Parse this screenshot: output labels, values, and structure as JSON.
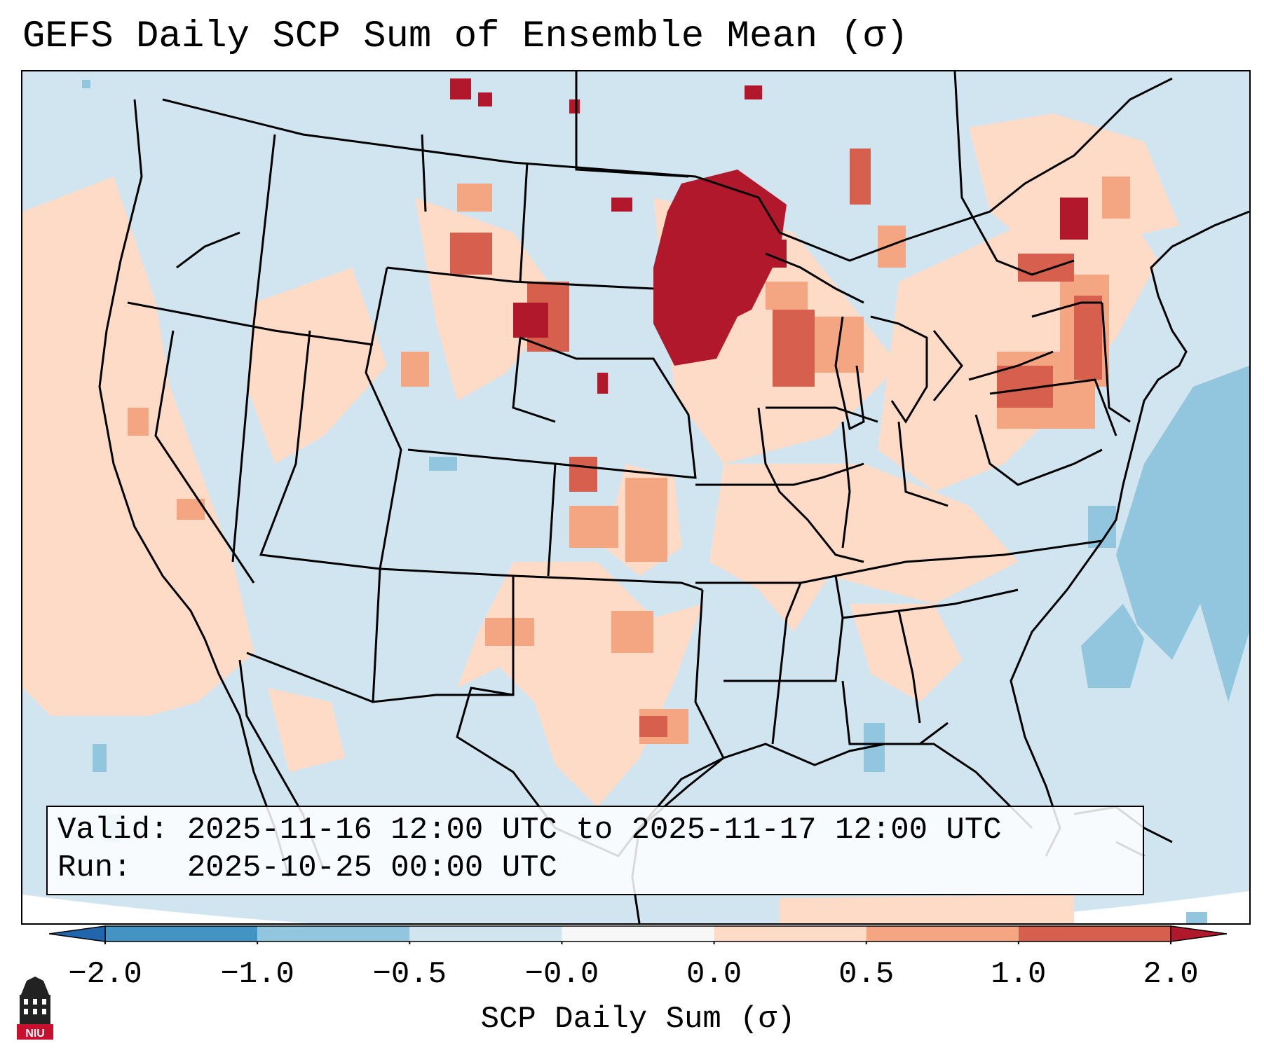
{
  "title": "GEFS Daily SCP Sum of Ensemble Mean (σ)",
  "info_box": {
    "valid_label": "Valid:",
    "valid_value": "2025-11-16 12:00 UTC to 2025-11-17 12:00 UTC",
    "run_label": "Run:",
    "run_value": "2025-10-25 00:00 UTC"
  },
  "colorbar": {
    "label": "SCP Daily Sum (σ)",
    "ticks": [
      "−2.0",
      "−1.0",
      "−0.5",
      "−0.0",
      "0.0",
      "0.5",
      "1.0",
      "2.0"
    ],
    "bins": [
      {
        "from": "-2.0",
        "to": "-1.0",
        "color": "#4393c3"
      },
      {
        "from": "-1.0",
        "to": "-0.5",
        "color": "#92c5de"
      },
      {
        "from": "-0.5",
        "to": "-0.0",
        "color": "#d1e5f0"
      },
      {
        "from": "-0.0",
        "to": "0.0",
        "color": "#f7f7f7"
      },
      {
        "from": "0.0",
        "to": "0.5",
        "color": "#fddbc7"
      },
      {
        "from": "0.5",
        "to": "1.0",
        "color": "#f4a582"
      },
      {
        "from": "1.0",
        "to": "2.0",
        "color": "#d6604d"
      }
    ],
    "under_color": "#2166ac",
    "over_color": "#b2182b"
  },
  "logo": {
    "text": "NIU"
  },
  "colors": {
    "background_field": "#d1e5f0",
    "positive_light": "#fddbc7",
    "positive_mid": "#f4a582",
    "positive_high": "#d6604d",
    "positive_max": "#b2182b",
    "negative_mid": "#92c5de"
  }
}
